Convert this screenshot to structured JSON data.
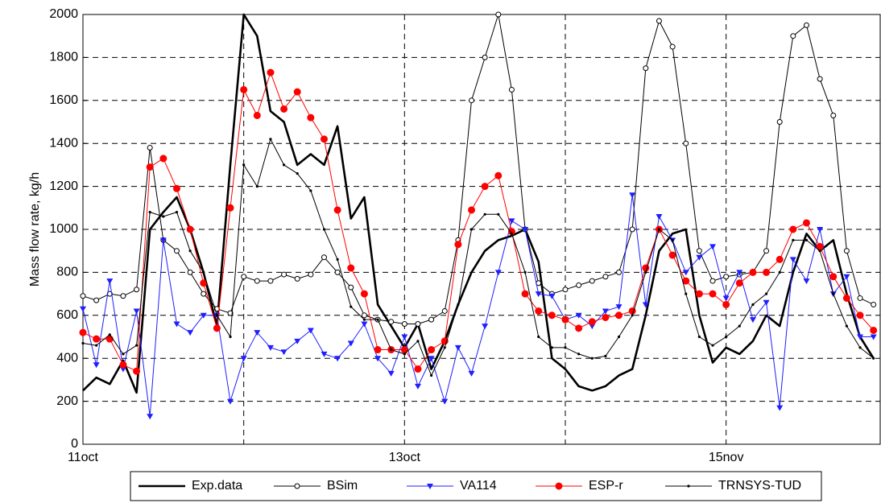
{
  "chart_data": {
    "type": "line",
    "y_label": "Mass flow rate, kg/h",
    "x": [
      0,
      2,
      4,
      6,
      8,
      10,
      12,
      14,
      16,
      18,
      20,
      22,
      24,
      26,
      28,
      30,
      32,
      34,
      36,
      38,
      40,
      42,
      44,
      46,
      48,
      50,
      52,
      54,
      56,
      58,
      60,
      62,
      64,
      66,
      68,
      70,
      72,
      74,
      76,
      78,
      80,
      82,
      84,
      86,
      88,
      90,
      92,
      94,
      96,
      98,
      100,
      102,
      104,
      106,
      108,
      110,
      112,
      114,
      116,
      118
    ],
    "xlim": [
      0,
      119
    ],
    "xticks": [
      {
        "value": 0,
        "label": "11oct"
      },
      {
        "value": 48,
        "label": "13oct"
      },
      {
        "value": 96,
        "label": "15nov"
      }
    ],
    "xminor_ticks": [
      24,
      72
    ],
    "ylim": [
      0,
      2000
    ],
    "yticks": [
      0,
      200,
      400,
      600,
      800,
      1000,
      1200,
      1400,
      1600,
      1800,
      2000
    ],
    "grid": true,
    "legend": "bottom",
    "series": [
      {
        "name": "Exp.data",
        "color": "#000000",
        "marker": "none",
        "width": 2.6,
        "values": [
          250,
          310,
          280,
          390,
          240,
          1000,
          1080,
          1150,
          1000,
          800,
          550,
          1300,
          2000,
          1900,
          1550,
          1500,
          1300,
          1350,
          1300,
          1480,
          1050,
          1150,
          650,
          550,
          450,
          560,
          350,
          480,
          650,
          800,
          900,
          950,
          970,
          1000,
          850,
          400,
          350,
          270,
          250,
          270,
          320,
          350,
          600,
          900,
          980,
          1000,
          600,
          380,
          450,
          420,
          480,
          600,
          550,
          800,
          980,
          900,
          950,
          700,
          500,
          400
        ]
      },
      {
        "name": "BSim",
        "color": "#000000",
        "marker": "circle",
        "width": 1,
        "values": [
          690,
          670,
          700,
          690,
          720,
          1380,
          950,
          900,
          800,
          700,
          630,
          610,
          780,
          760,
          760,
          790,
          770,
          790,
          870,
          800,
          730,
          600,
          580,
          570,
          560,
          560,
          580,
          620,
          950,
          1600,
          1800,
          2000,
          1650,
          1000,
          750,
          700,
          720,
          740,
          760,
          780,
          800,
          1000,
          1750,
          1970,
          1850,
          1400,
          900,
          760,
          780,
          790,
          800,
          900,
          1500,
          1900,
          1950,
          1700,
          1530,
          900,
          680,
          650
        ]
      },
      {
        "name": "VA114",
        "color": "#1f1fff",
        "marker": "triangle",
        "width": 1,
        "values": [
          630,
          370,
          760,
          350,
          620,
          130,
          950,
          560,
          520,
          600,
          600,
          200,
          400,
          520,
          450,
          430,
          480,
          530,
          420,
          400,
          470,
          560,
          400,
          330,
          500,
          270,
          400,
          200,
          450,
          330,
          550,
          800,
          1040,
          1000,
          700,
          690,
          580,
          600,
          550,
          620,
          640,
          1160,
          650,
          1060,
          950,
          800,
          870,
          920,
          680,
          800,
          580,
          660,
          170,
          860,
          760,
          1000,
          700,
          780,
          500,
          500
        ]
      },
      {
        "name": "ESP-r",
        "color": "#ff0000",
        "marker": "dot",
        "width": 1,
        "values": [
          520,
          490,
          490,
          370,
          340,
          1290,
          1330,
          1190,
          1000,
          750,
          540,
          1100,
          1650,
          1530,
          1730,
          1560,
          1640,
          1520,
          1420,
          1090,
          820,
          700,
          440,
          440,
          440,
          350,
          440,
          480,
          930,
          1090,
          1200,
          1250,
          990,
          700,
          620,
          600,
          580,
          540,
          570,
          590,
          600,
          620,
          820,
          1000,
          880,
          760,
          700,
          700,
          650,
          750,
          800,
          800,
          860,
          1000,
          1030,
          920,
          780,
          680,
          600,
          530
        ]
      },
      {
        "name": "TRNSYS-TUD",
        "color": "#000000",
        "marker": "point",
        "width": 1,
        "values": [
          470,
          460,
          510,
          420,
          460,
          1080,
          1060,
          1080,
          900,
          800,
          600,
          500,
          1300,
          1200,
          1420,
          1300,
          1260,
          1180,
          1000,
          860,
          640,
          580,
          580,
          440,
          420,
          480,
          320,
          450,
          650,
          1000,
          1070,
          1070,
          980,
          800,
          500,
          450,
          450,
          420,
          400,
          410,
          500,
          600,
          800,
          1000,
          950,
          700,
          500,
          460,
          500,
          550,
          650,
          700,
          800,
          950,
          950,
          900,
          700,
          550,
          450,
          400
        ]
      }
    ]
  }
}
